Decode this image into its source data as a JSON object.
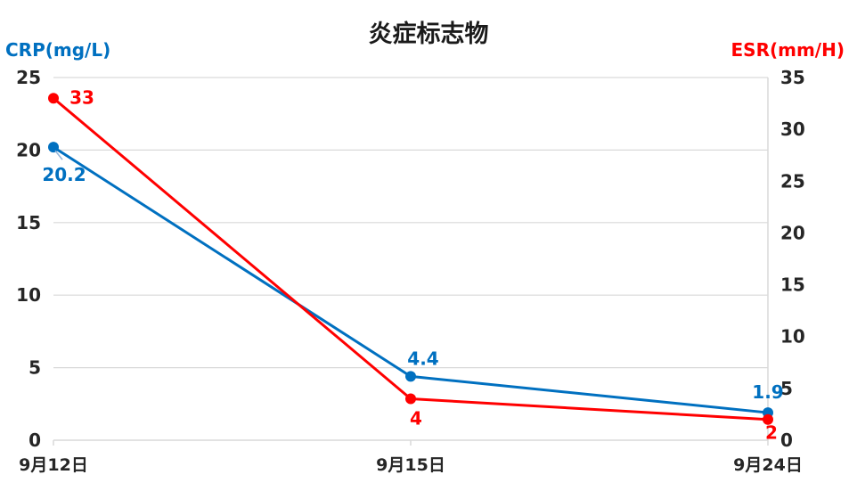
{
  "chart_data": {
    "type": "line",
    "title": "炎症标志物",
    "categories": [
      "9月12日",
      "9月15日",
      "9月24日"
    ],
    "y_left": {
      "label": "CRP(mg/L)",
      "ticks": [
        0,
        5,
        10,
        15,
        20,
        25
      ],
      "range": [
        0,
        25
      ]
    },
    "y_right": {
      "label": "ESR(mm/H)",
      "ticks": [
        0,
        5,
        10,
        15,
        20,
        25,
        30,
        35
      ],
      "range": [
        0,
        35
      ]
    },
    "series": [
      {
        "name": "CRP(mg/L)",
        "axis": "left",
        "color": "#0070C0",
        "values": [
          20.2,
          4.4,
          1.9
        ],
        "labels": [
          "20.2",
          "4.4",
          "1.9"
        ]
      },
      {
        "name": "ESR(mm/H)",
        "axis": "right",
        "color": "#FF0000",
        "values": [
          33,
          4,
          2
        ],
        "labels": [
          "33",
          "4",
          "2"
        ]
      }
    ],
    "grid": true,
    "legend": "none"
  }
}
